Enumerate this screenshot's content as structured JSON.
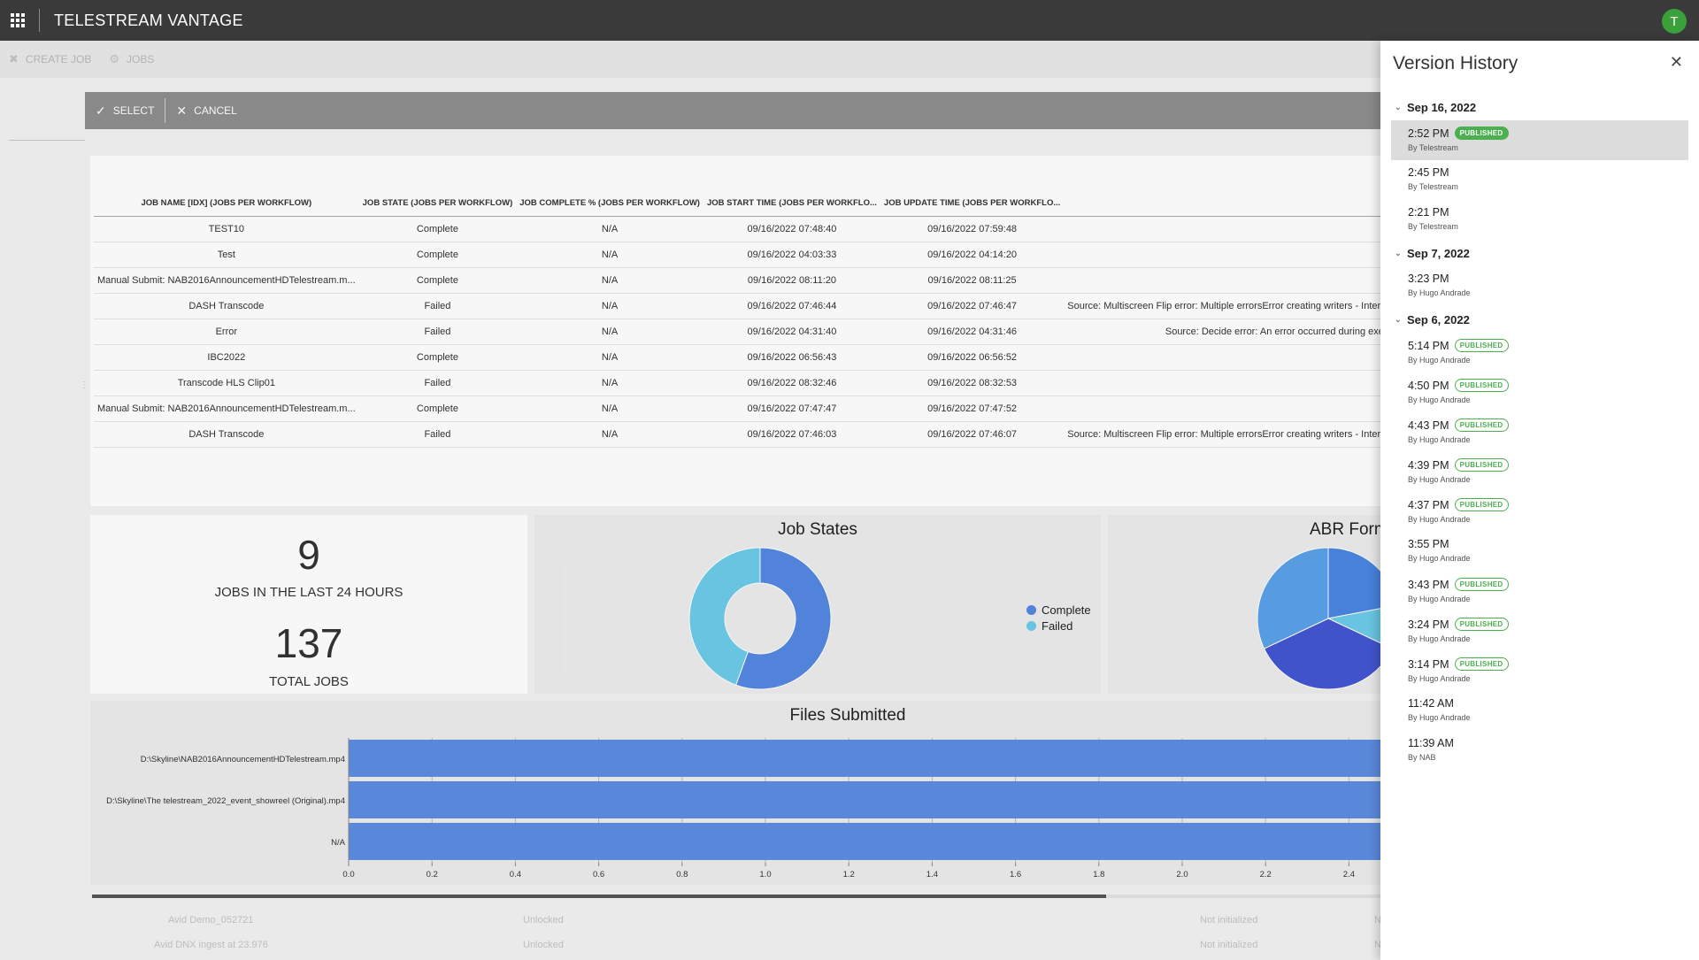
{
  "app": {
    "title": "TELESTREAM VANTAGE",
    "avatar_initial": "T"
  },
  "toolbar": {
    "create_job": "CREATE JOB",
    "jobs": "JOBS"
  },
  "actionbar": {
    "select": "SELECT",
    "cancel": "CANCEL"
  },
  "table": {
    "headers": [
      "JOB NAME [IDX] (JOBS PER WORKFLOW)",
      "JOB STATE (JOBS PER WORKFLOW)",
      "JOB COMPLETE % (JOBS PER WORKFLOW)",
      "JOB START TIME (JOBS PER WORKFLO...",
      "JOB UPDATE TIME (JOBS PER WORKFLO...",
      ""
    ],
    "rows": [
      {
        "name": "TEST10",
        "state": "Complete",
        "pct": "N/A",
        "start": "09/16/2022 07:48:40",
        "update": "09/16/2022 07:59:48",
        "msg": ""
      },
      {
        "name": "Test",
        "state": "Complete",
        "pct": "N/A",
        "start": "09/16/2022 04:03:33",
        "update": "09/16/2022 04:14:20",
        "msg": ""
      },
      {
        "name": "Manual Submit: NAB2016AnnouncementHDTelestream.m...",
        "state": "Complete",
        "pct": "N/A",
        "start": "09/16/2022 08:11:20",
        "update": "09/16/2022 08:11:25",
        "msg": ""
      },
      {
        "name": "DASH Transcode",
        "state": "Failed",
        "pct": "N/A",
        "start": "09/16/2022 07:46:44",
        "update": "09/16/2022 07:46:47",
        "msg": "Source: Multiscreen Flip error: Multiple errorsError creating writers - Intermu"
      },
      {
        "name": "Error",
        "state": "Failed",
        "pct": "N/A",
        "start": "09/16/2022 04:31:40",
        "update": "09/16/2022 04:31:46",
        "msg": "Source: Decide error: An error occurred during execu"
      },
      {
        "name": "IBC2022",
        "state": "Complete",
        "pct": "N/A",
        "start": "09/16/2022 06:56:43",
        "update": "09/16/2022 06:56:52",
        "msg": ""
      },
      {
        "name": "Transcode HLS Clip01",
        "state": "Failed",
        "pct": "N/A",
        "start": "09/16/2022 08:32:46",
        "update": "09/16/2022 08:32:53",
        "msg": ""
      },
      {
        "name": "Manual Submit: NAB2016AnnouncementHDTelestream.m...",
        "state": "Complete",
        "pct": "N/A",
        "start": "09/16/2022 07:47:47",
        "update": "09/16/2022 07:47:52",
        "msg": ""
      },
      {
        "name": "DASH Transcode",
        "state": "Failed",
        "pct": "N/A",
        "start": "09/16/2022 07:46:03",
        "update": "09/16/2022 07:46:07",
        "msg": "Source: Multiscreen Flip error: Multiple errorsError creating writers - Intermu"
      }
    ]
  },
  "stats": {
    "jobs_24h": "9",
    "jobs_24h_label": "JOBS IN THE LAST 24 HOURS",
    "total_jobs": "137",
    "total_jobs_label": "TOTAL JOBS"
  },
  "job_states": {
    "title": "Job States"
  },
  "abr": {
    "title": "ABR Form"
  },
  "files": {
    "title": "Files Submitted"
  },
  "chart_data": [
    {
      "type": "pie",
      "title": "Job States",
      "donut": true,
      "categories": [
        "Complete",
        "Failed"
      ],
      "values": [
        5,
        4
      ],
      "colors": [
        "#5488e2",
        "#6ccbe8"
      ],
      "legend": "right"
    },
    {
      "type": "pie",
      "title": "ABR Form",
      "values": [
        22,
        10,
        36,
        32
      ],
      "colors": [
        "#4a86e0",
        "#6ccbe8",
        "#4456d2",
        "#5aa0e8"
      ],
      "legend": "none"
    },
    {
      "type": "bar",
      "orientation": "horizontal",
      "title": "Files Submitted",
      "categories": [
        "D:\\Skyline\\NAB2016AnnouncementHDTelestream.mp4",
        "D:\\Skyline\\The telestream_2022_event_showreel (Original).mp4",
        "N/A"
      ],
      "values": [
        3,
        3,
        3
      ],
      "xticks": [
        "0.0",
        "0.2",
        "0.4",
        "0.6",
        "0.8",
        "1.0",
        "1.2",
        "1.4",
        "1.6",
        "1.8",
        "2.0",
        "2.2",
        "2.4"
      ],
      "xlim": [
        0,
        3
      ],
      "grid": true,
      "color": "#5488e2"
    }
  ],
  "background_rows": [
    {
      "name": "Avid Demo_052721",
      "state": "Unlocked",
      "status": "Not initialized",
      "extra": "N"
    },
    {
      "name": "Avid DNX ingest at 23.976",
      "state": "Unlocked",
      "status": "Not initialized",
      "extra": "N"
    }
  ],
  "version_history": {
    "title": "Version History",
    "groups": [
      {
        "date": "Sep 16, 2022",
        "entries": [
          {
            "time": "2:52 PM",
            "by": "By Telestream",
            "badge": "PUBLISHED",
            "badge_style": "solid",
            "selected": true
          },
          {
            "time": "2:45 PM",
            "by": "By Telestream",
            "badge": "",
            "badge_style": "",
            "selected": false
          },
          {
            "time": "2:21 PM",
            "by": "By Telestream",
            "badge": "",
            "badge_style": "",
            "selected": false
          }
        ]
      },
      {
        "date": "Sep 7, 2022",
        "entries": [
          {
            "time": "3:23 PM",
            "by": "By Hugo Andrade",
            "badge": "",
            "badge_style": "",
            "selected": false
          }
        ]
      },
      {
        "date": "Sep 6, 2022",
        "entries": [
          {
            "time": "5:14 PM",
            "by": "By Hugo Andrade",
            "badge": "PUBLISHED",
            "badge_style": "outline",
            "selected": false
          },
          {
            "time": "4:50 PM",
            "by": "By Hugo Andrade",
            "badge": "PUBLISHED",
            "badge_style": "outline",
            "selected": false
          },
          {
            "time": "4:43 PM",
            "by": "By Hugo Andrade",
            "badge": "PUBLISHED",
            "badge_style": "outline",
            "selected": false
          },
          {
            "time": "4:39 PM",
            "by": "By Hugo Andrade",
            "badge": "PUBLISHED",
            "badge_style": "outline",
            "selected": false
          },
          {
            "time": "4:37 PM",
            "by": "By Hugo Andrade",
            "badge": "PUBLISHED",
            "badge_style": "outline",
            "selected": false
          },
          {
            "time": "3:55 PM",
            "by": "By Hugo Andrade",
            "badge": "",
            "badge_style": "",
            "selected": false
          },
          {
            "time": "3:43 PM",
            "by": "By Hugo Andrade",
            "badge": "PUBLISHED",
            "badge_style": "outline",
            "selected": false
          },
          {
            "time": "3:24 PM",
            "by": "By Hugo Andrade",
            "badge": "PUBLISHED",
            "badge_style": "outline",
            "selected": false
          },
          {
            "time": "3:14 PM",
            "by": "By Hugo Andrade",
            "badge": "PUBLISHED",
            "badge_style": "outline",
            "selected": false
          },
          {
            "time": "11:42 AM",
            "by": "By Hugo Andrade",
            "badge": "",
            "badge_style": "",
            "selected": false
          },
          {
            "time": "11:39 AM",
            "by": "By NAB",
            "badge": "",
            "badge_style": "",
            "selected": false
          }
        ]
      }
    ]
  }
}
